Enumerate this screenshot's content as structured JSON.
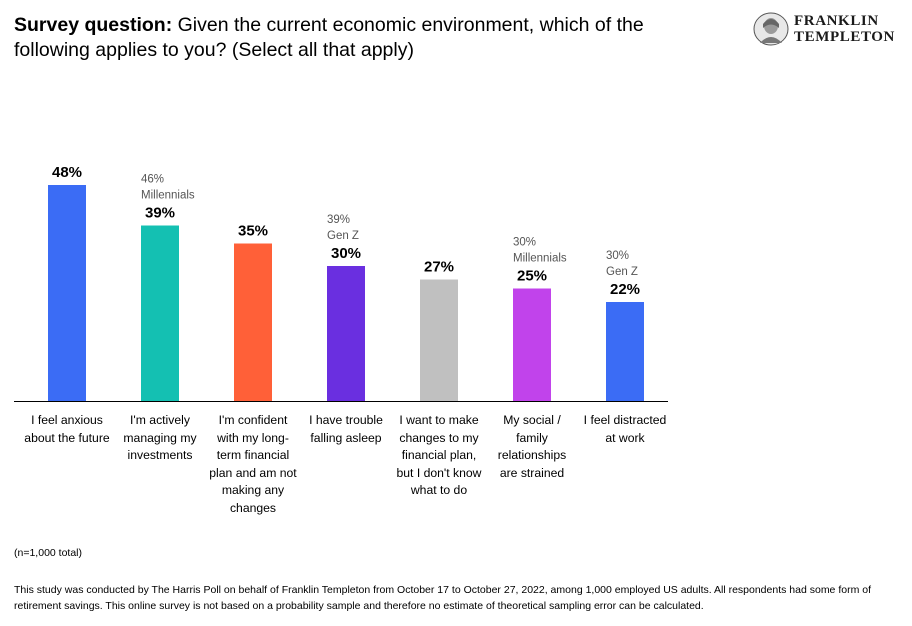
{
  "header": {
    "title_lead": "Survey question:",
    "title_rest": " Given the current economic environment, which of the following applies to you? (Select all that apply)"
  },
  "logo": {
    "line1": "FRANKLIN",
    "line2": "TEMPLETON",
    "icon": "benjamin-franklin-portrait-icon"
  },
  "chart_data": {
    "type": "bar",
    "categories": [
      "I feel anxious about the future",
      "I'm actively managing my investments",
      "I'm confident with my long-term financial plan and am not making any changes",
      "I have trouble falling asleep",
      "I want to make changes to my financial plan, but I don't know what to do",
      "My social / family relationships are strained",
      "I feel distracted at work"
    ],
    "category_lines": [
      [
        "I feel anxious",
        "about the future"
      ],
      [
        "I'm actively",
        "managing my",
        "investments"
      ],
      [
        "I'm confident",
        "with my long-",
        "term financial",
        "plan and am not",
        "making any",
        "changes"
      ],
      [
        "I have trouble",
        "falling asleep"
      ],
      [
        "I want to make",
        "changes to my",
        "financial plan,",
        "but I don't know",
        "what to do"
      ],
      [
        "My social /",
        "family",
        "relationships",
        "are strained"
      ],
      [
        "I feel distracted",
        "at work"
      ]
    ],
    "values": [
      48,
      39,
      35,
      30,
      27,
      25,
      22
    ],
    "value_labels": [
      "48%",
      "39%",
      "35%",
      "30%",
      "27%",
      "25%",
      "22%"
    ],
    "colors": [
      "#3b6cf5",
      "#14c0b2",
      "#ff6038",
      "#6a2fe0",
      "#c0c0c0",
      "#c143eb",
      "#3b6cf5"
    ],
    "annotations": [
      null,
      {
        "value": "46%",
        "group": "Millennials"
      },
      null,
      {
        "value": "39%",
        "group": "Gen Z"
      },
      null,
      {
        "value": "30%",
        "group": "Millennials"
      },
      {
        "value": "30%",
        "group": "Gen Z"
      }
    ],
    "ylim": [
      0,
      50
    ],
    "grid": false,
    "xlabel": "",
    "ylabel": ""
  },
  "notes": {
    "sample": "(n=1,000 total)",
    "footnote": "This study was conducted by The Harris Poll on behalf of Franklin Templeton from October 17 to October 27, 2022, among 1,000 employed US adults. All respondents had some form of retirement savings. This online survey is not based on a probability sample and therefore no estimate of theoretical sampling error can be calculated."
  }
}
